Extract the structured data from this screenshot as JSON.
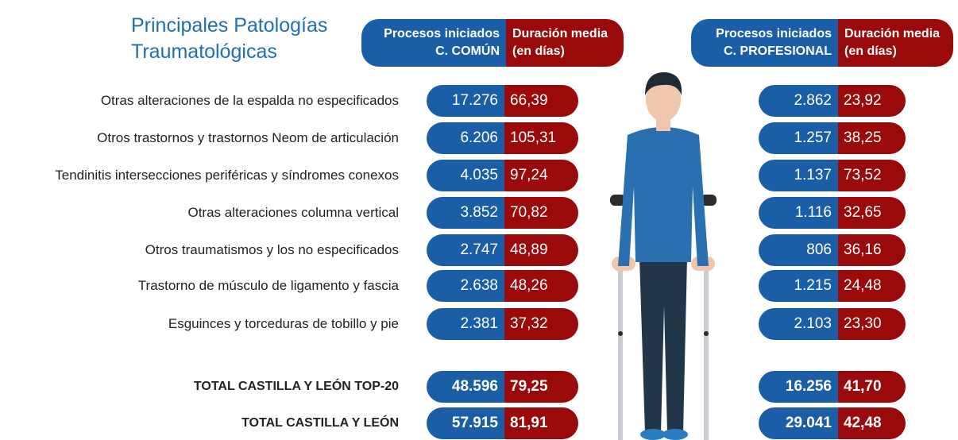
{
  "title": [
    "Principales Patologías",
    "Traumatológicas"
  ],
  "headers": {
    "comun": {
      "procesos": [
        "Procesos iniciados",
        "C. COMÚN"
      ],
      "duracion": [
        "Duración media",
        "(en días)"
      ]
    },
    "profesional": {
      "procesos": [
        "Procesos iniciados",
        "C. PROFESIONAL"
      ],
      "duracion": [
        "Duración media",
        "(en días)"
      ]
    }
  },
  "rows": [
    {
      "label": "Otras alteraciones de la espalda no especificados",
      "comun_procesos": "17.276",
      "comun_duracion": "66,39",
      "profesional_procesos": "2.862",
      "profesional_duracion": "23,92"
    },
    {
      "label": "Otros trastornos y trastornos Neom de articulación",
      "comun_procesos": "6.206",
      "comun_duracion": "105,31",
      "profesional_procesos": "1.257",
      "profesional_duracion": "38,25"
    },
    {
      "label": "Tendinitis intersecciones periféricas y síndromes conexos",
      "comun_procesos": "4.035",
      "comun_duracion": "97,24",
      "profesional_procesos": "1.137",
      "profesional_duracion": "73,52"
    },
    {
      "label": "Otras alteraciones columna vertical",
      "comun_procesos": "3.852",
      "comun_duracion": "70,82",
      "profesional_procesos": "1.116",
      "profesional_duracion": "32,65"
    },
    {
      "label": "Otros traumatismos y los no especificados",
      "comun_procesos": "2.747",
      "comun_duracion": "48,89",
      "profesional_procesos": "806",
      "profesional_duracion": "36,16"
    },
    {
      "label": "Trastorno de músculo de ligamento y fascia",
      "comun_procesos": "2.638",
      "comun_duracion": "48,26",
      "profesional_procesos": "1.215",
      "profesional_duracion": "24,48"
    },
    {
      "label": "Esguinces y torceduras de tobillo y pie",
      "comun_procesos": "2.381",
      "comun_duracion": "37,32",
      "profesional_procesos": "2.103",
      "profesional_duracion": "23,30"
    }
  ],
  "totals": [
    {
      "label": "TOTAL CASTILLA Y LEÓN TOP-20",
      "comun_procesos": "48.596",
      "comun_duracion": "79,25",
      "profesional_procesos": "16.256",
      "profesional_duracion": "41,70"
    },
    {
      "label": "TOTAL CASTILLA Y LEÓN",
      "comun_procesos": "57.915",
      "comun_duracion": "81,91",
      "profesional_procesos": "29.041",
      "profesional_duracion": "42,48"
    }
  ]
}
